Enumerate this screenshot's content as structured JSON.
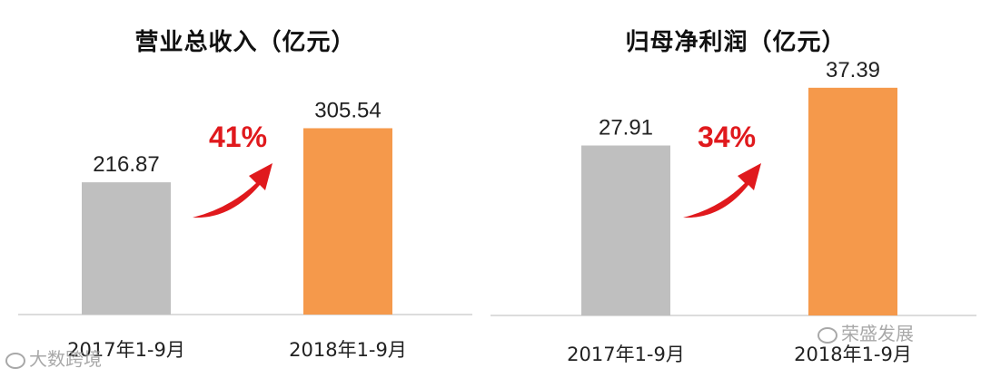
{
  "chart_data": [
    {
      "type": "bar",
      "title": "营业总收入（亿元）",
      "categories": [
        "2017年1-9月",
        "2018年1-9月"
      ],
      "values": [
        216.87,
        305.54
      ],
      "value_labels": [
        "216.87",
        "305.54"
      ],
      "growth_label": "41%",
      "colors": [
        "#bfbfbf",
        "#f5994b"
      ],
      "ylim": [
        0,
        330
      ]
    },
    {
      "type": "bar",
      "title": "归母净利润（亿元）",
      "categories": [
        "2017年1-9月",
        "2018年1-9月"
      ],
      "values": [
        27.91,
        37.39
      ],
      "value_labels": [
        "27.91",
        "37.39"
      ],
      "growth_label": "34%",
      "colors": [
        "#bfbfbf",
        "#f5994b"
      ],
      "ylim": [
        0,
        39
      ]
    }
  ],
  "arrow_color": "#e0191d",
  "watermarks": {
    "left": "大数跨境",
    "right": "荣盛发展"
  }
}
